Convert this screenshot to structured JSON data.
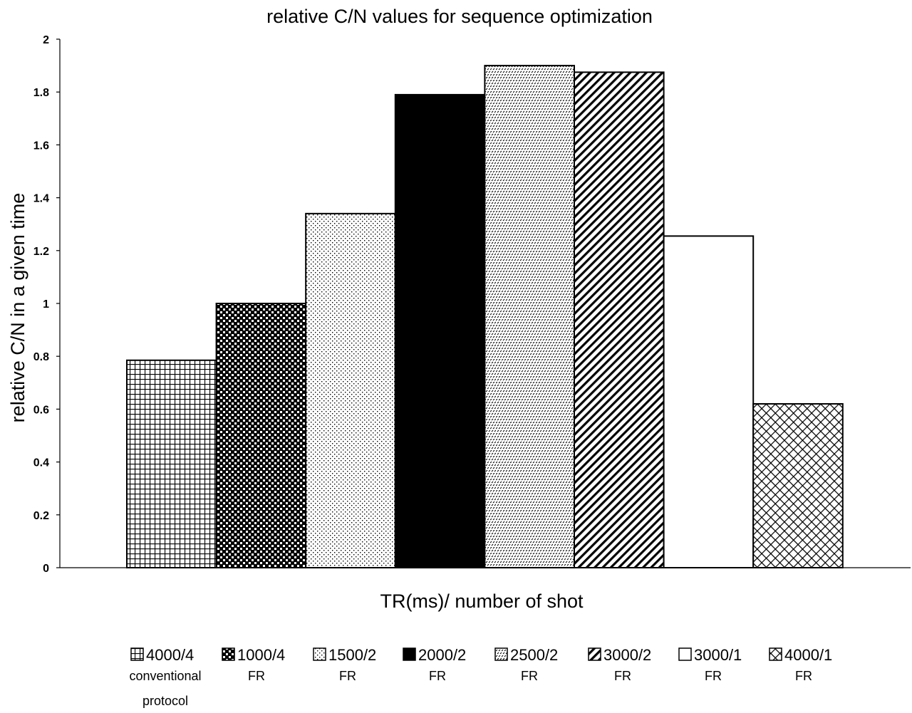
{
  "chart_data": {
    "type": "bar",
    "title": "relative C/N values for sequence optimization",
    "xlabel": "TR(ms)/ number of shot",
    "ylabel": "relative C/N in a given time",
    "ylim": [
      0,
      2
    ],
    "yticks": [
      "0",
      "0.2",
      "0.4",
      "0.6",
      "0.8",
      "1",
      "1.2",
      "1.4",
      "1.6",
      "1.8",
      "2"
    ],
    "grid": false,
    "legend_position": "bottom",
    "categories": [
      "4000/4",
      "1000/4",
      "1500/2",
      "2000/2",
      "2500/2",
      "3000/2",
      "3000/1",
      "4000/1"
    ],
    "values": [
      0.785,
      1.0,
      1.34,
      1.79,
      1.9,
      1.875,
      1.255,
      0.62
    ],
    "legend": [
      {
        "label": "4000/4",
        "sub": [
          "conventional",
          "protocol"
        ],
        "pattern": "grid"
      },
      {
        "label": "1000/4",
        "sub": [
          "FR"
        ],
        "pattern": "checker"
      },
      {
        "label": "1500/2",
        "sub": [
          "FR"
        ],
        "pattern": "dots"
      },
      {
        "label": "2000/2",
        "sub": [
          "FR"
        ],
        "pattern": "solid"
      },
      {
        "label": "2500/2",
        "sub": [
          "FR"
        ],
        "pattern": "zigzag"
      },
      {
        "label": "3000/2",
        "sub": [
          "FR"
        ],
        "pattern": "diagonal"
      },
      {
        "label": "3000/1",
        "sub": [
          "FR"
        ],
        "pattern": "white"
      },
      {
        "label": "4000/1",
        "sub": [
          "FR"
        ],
        "pattern": "crosshatch"
      }
    ]
  }
}
